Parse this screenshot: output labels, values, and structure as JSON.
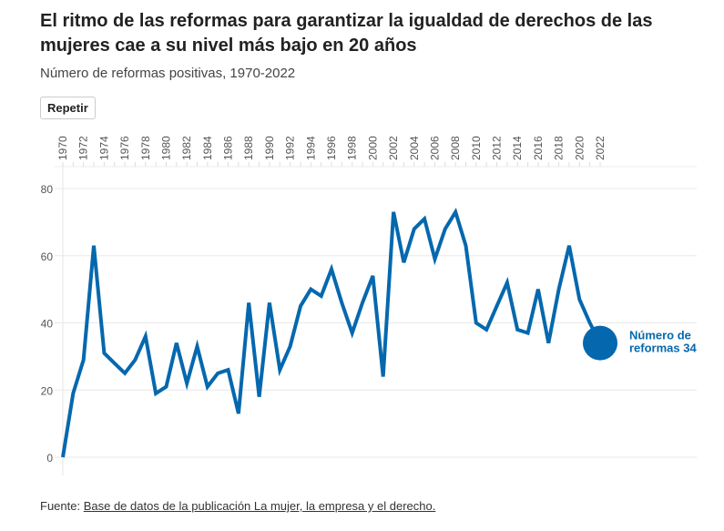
{
  "title": "El ritmo de las reformas para garantizar la igualdad de derechos de las mujeres cae a su nivel más bajo en 20 años",
  "subtitle": "Número de reformas positivas, 1970-2022",
  "replay_label": "Repetir",
  "source_prefix": "Fuente: ",
  "source_link": "Base de datos de la publicación La mujer, la empresa y el derecho.",
  "chart_data": {
    "type": "line",
    "title": "Número de reformas positivas, 1970-2022",
    "xlabel": "",
    "ylabel": "",
    "ylim": [
      0,
      80
    ],
    "xlim": [
      1970,
      2022
    ],
    "yticks": [
      0,
      20,
      40,
      60,
      80
    ],
    "xticks": [
      1970,
      1972,
      1974,
      1976,
      1978,
      1980,
      1982,
      1984,
      1986,
      1988,
      1990,
      1992,
      1994,
      1996,
      1998,
      2000,
      2002,
      2004,
      2006,
      2008,
      2010,
      2012,
      2014,
      2016,
      2018,
      2020,
      2022
    ],
    "grid": true,
    "color": "#0568ae",
    "x": [
      1970,
      1971,
      1972,
      1973,
      1974,
      1975,
      1976,
      1977,
      1978,
      1979,
      1980,
      1981,
      1982,
      1983,
      1984,
      1985,
      1986,
      1987,
      1988,
      1989,
      1990,
      1991,
      1992,
      1993,
      1994,
      1995,
      1996,
      1997,
      1998,
      1999,
      2000,
      2001,
      2002,
      2003,
      2004,
      2005,
      2006,
      2007,
      2008,
      2009,
      2010,
      2011,
      2012,
      2013,
      2014,
      2015,
      2016,
      2017,
      2018,
      2019,
      2020,
      2021,
      2022
    ],
    "values": [
      0,
      19,
      29,
      63,
      31,
      28,
      25,
      29,
      36,
      19,
      21,
      34,
      22,
      33,
      21,
      25,
      26,
      13,
      46,
      18,
      46,
      26,
      33,
      45,
      50,
      48,
      56,
      46,
      37,
      46,
      54,
      24,
      73,
      58,
      68,
      71,
      59,
      68,
      73,
      63,
      40,
      38,
      45,
      52,
      38,
      37,
      50,
      34,
      50,
      63,
      47,
      40,
      34
    ],
    "annotation": {
      "label_line1": "Número de",
      "label_line2": "reformas 34",
      "year": 2022,
      "value": 34
    }
  }
}
